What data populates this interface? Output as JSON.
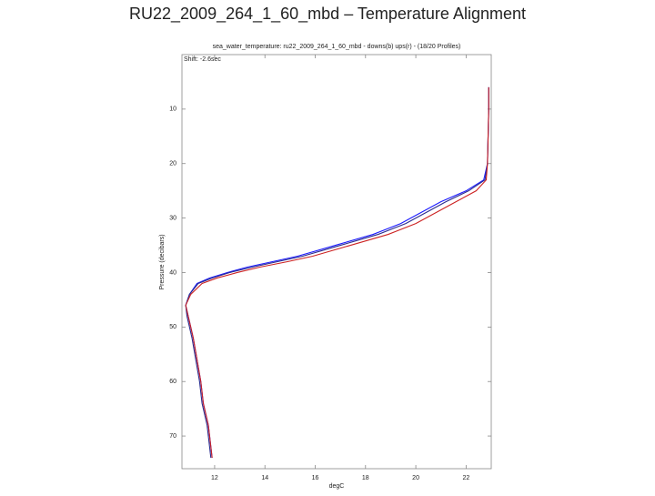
{
  "chart_data": {
    "type": "line",
    "title": "RU22_2009_264_1_60_mbd – Temperature Alignment",
    "subtitle": "sea_water_temperature: ru22_2009_264_1_60_mbd - downs(b) ups(r) - (18/20 Profiles)",
    "annotation": "Shift: -2.6sec",
    "x_label": "degC",
    "y_label": "Pressure (decibars)",
    "y": [
      6,
      10,
      20,
      23,
      25,
      27,
      29,
      31,
      33,
      35,
      37,
      38,
      39,
      40,
      41,
      42,
      44,
      46,
      48,
      52,
      56,
      60,
      64,
      68,
      72,
      74
    ],
    "series": [
      {
        "color": "#1a1aff",
        "values": [
          22.9,
          22.9,
          22.85,
          22.7,
          22.0,
          21.0,
          20.2,
          19.4,
          18.3,
          16.8,
          15.3,
          14.3,
          13.3,
          12.5,
          11.8,
          11.3,
          11.0,
          10.85,
          10.95,
          11.15,
          11.3,
          11.45,
          11.55,
          11.75,
          11.85,
          11.9
        ]
      },
      {
        "color": "#2b2b8c",
        "values": [
          22.9,
          22.9,
          22.85,
          22.75,
          22.1,
          21.2,
          20.4,
          19.6,
          18.5,
          17.0,
          15.5,
          14.5,
          13.5,
          12.6,
          11.9,
          11.35,
          11.0,
          10.85,
          10.9,
          11.1,
          11.25,
          11.4,
          11.5,
          11.7,
          11.8,
          11.85
        ]
      },
      {
        "color": "#cc2222",
        "values": [
          22.9,
          22.9,
          22.85,
          22.8,
          22.4,
          21.6,
          20.8,
          20.0,
          18.9,
          17.4,
          15.9,
          14.9,
          13.8,
          12.9,
          12.1,
          11.5,
          11.05,
          10.85,
          10.95,
          11.15,
          11.3,
          11.45,
          11.55,
          11.75,
          11.85,
          11.9
        ]
      }
    ],
    "xlim": [
      10.7,
      23
    ],
    "ylim": [
      0,
      76
    ],
    "y_inverted": true,
    "xticks": [
      12,
      14,
      16,
      18,
      20,
      22
    ],
    "yticks": [
      10,
      20,
      30,
      40,
      50,
      60,
      70
    ]
  }
}
